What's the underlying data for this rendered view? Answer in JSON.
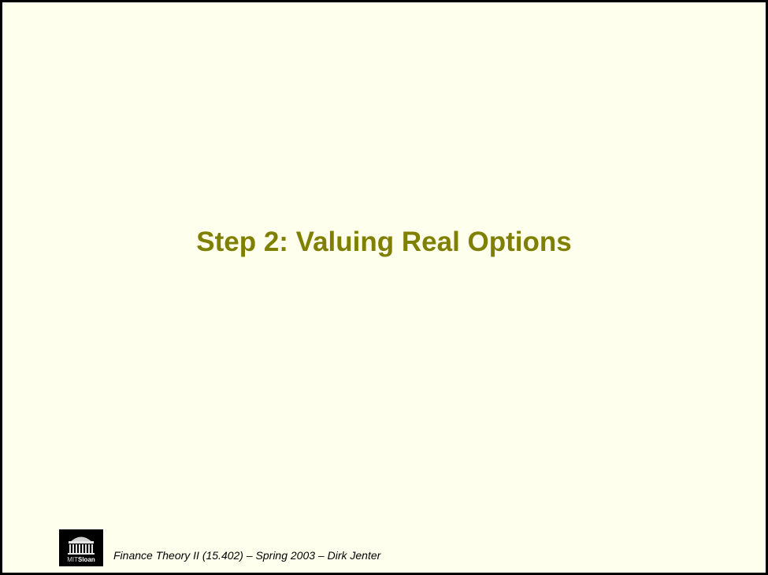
{
  "slide": {
    "title": "Step 2: Valuing Real Options",
    "footer_text": "Finance Theory II (15.402) – Spring 2003 – Dirk Jenter",
    "logo": {
      "prefix": "MIT",
      "name": "Sloan"
    }
  },
  "colors": {
    "background": "#ffffee",
    "title": "#808000",
    "border": "#000000"
  }
}
